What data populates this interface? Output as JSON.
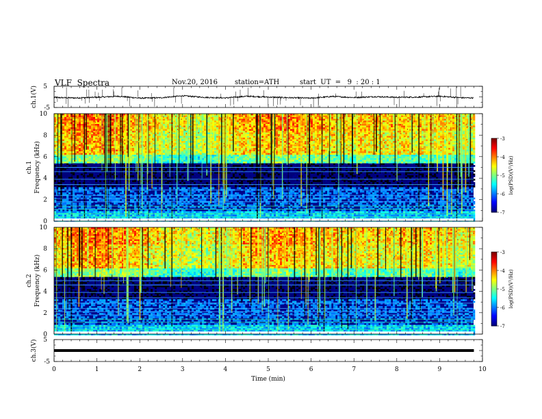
{
  "header": {
    "title": "VLF  Spectra",
    "date": "Nov.20, 2016",
    "station": "station=ATH",
    "start_ut": "start  UT  =   9  : 20 : 1"
  },
  "chart_data": [
    {
      "type": "line",
      "panel": "ch1-waveform",
      "ylabel": "ch.1(V)",
      "ylim": [
        -5,
        5
      ],
      "y_ticks": [
        "5",
        "-5"
      ],
      "xlim": [
        0,
        10
      ],
      "series": [
        {
          "x": [
            0,
            0.5,
            1,
            1.5,
            2,
            2.5,
            3,
            3.5,
            4,
            4.5,
            5,
            5.5,
            6,
            6.5,
            7,
            7.5,
            8,
            8.5,
            9,
            9.5,
            9.8
          ],
          "values": [
            -0.3,
            -0.5,
            -0.2,
            0.3,
            -0.6,
            -0.4,
            0.5,
            -0.2,
            -0.5,
            0.3,
            -0.1,
            -0.4,
            -0.6,
            0.2,
            -0.3,
            0.1,
            -0.2,
            -0.1,
            0.3,
            -0.4,
            -0.5
          ]
        }
      ],
      "color": "#000000"
    },
    {
      "type": "heatmap",
      "panel": "ch1-spectrogram",
      "ylabel_channel": "ch.1",
      "ylabel": "Frequency (kHz)",
      "ylim": [
        0,
        10
      ],
      "y_ticks": [
        "0",
        "2",
        "4",
        "6",
        "8",
        "10"
      ],
      "xlim": [
        0,
        9.8
      ],
      "colorbar": {
        "label": "log(PSD)(V²/Hz)",
        "range": [
          -7,
          -3
        ],
        "ticks": [
          "-3",
          "-4",
          "-5",
          "-6",
          "-7"
        ]
      }
    },
    {
      "type": "heatmap",
      "panel": "ch2-spectrogram",
      "ylabel_channel": "ch.2",
      "ylabel": "Frequency (kHz)",
      "ylim": [
        0,
        10
      ],
      "y_ticks": [
        "0",
        "2",
        "4",
        "6",
        "8",
        "10"
      ],
      "xlim": [
        0,
        9.8
      ],
      "colorbar": {
        "label": "log(PSD)(V²/Hz)",
        "range": [
          -7,
          -3
        ],
        "ticks": [
          "-3",
          "-4",
          "-5",
          "-6",
          "-7"
        ]
      }
    },
    {
      "type": "line",
      "panel": "ch3-waveform",
      "ylabel": "ch.3(V)",
      "ylim": [
        -5,
        5
      ],
      "y_ticks": [
        "5",
        "-5"
      ],
      "xlim": [
        0,
        10
      ],
      "series": [
        {
          "x": [
            0,
            9.8
          ],
          "values": [
            0,
            0
          ]
        }
      ],
      "color": "#000000",
      "xlabel": "Time  (min)",
      "x_ticks": [
        "0",
        "1",
        "2",
        "3",
        "4",
        "5",
        "6",
        "7",
        "8",
        "9",
        "10"
      ]
    }
  ]
}
